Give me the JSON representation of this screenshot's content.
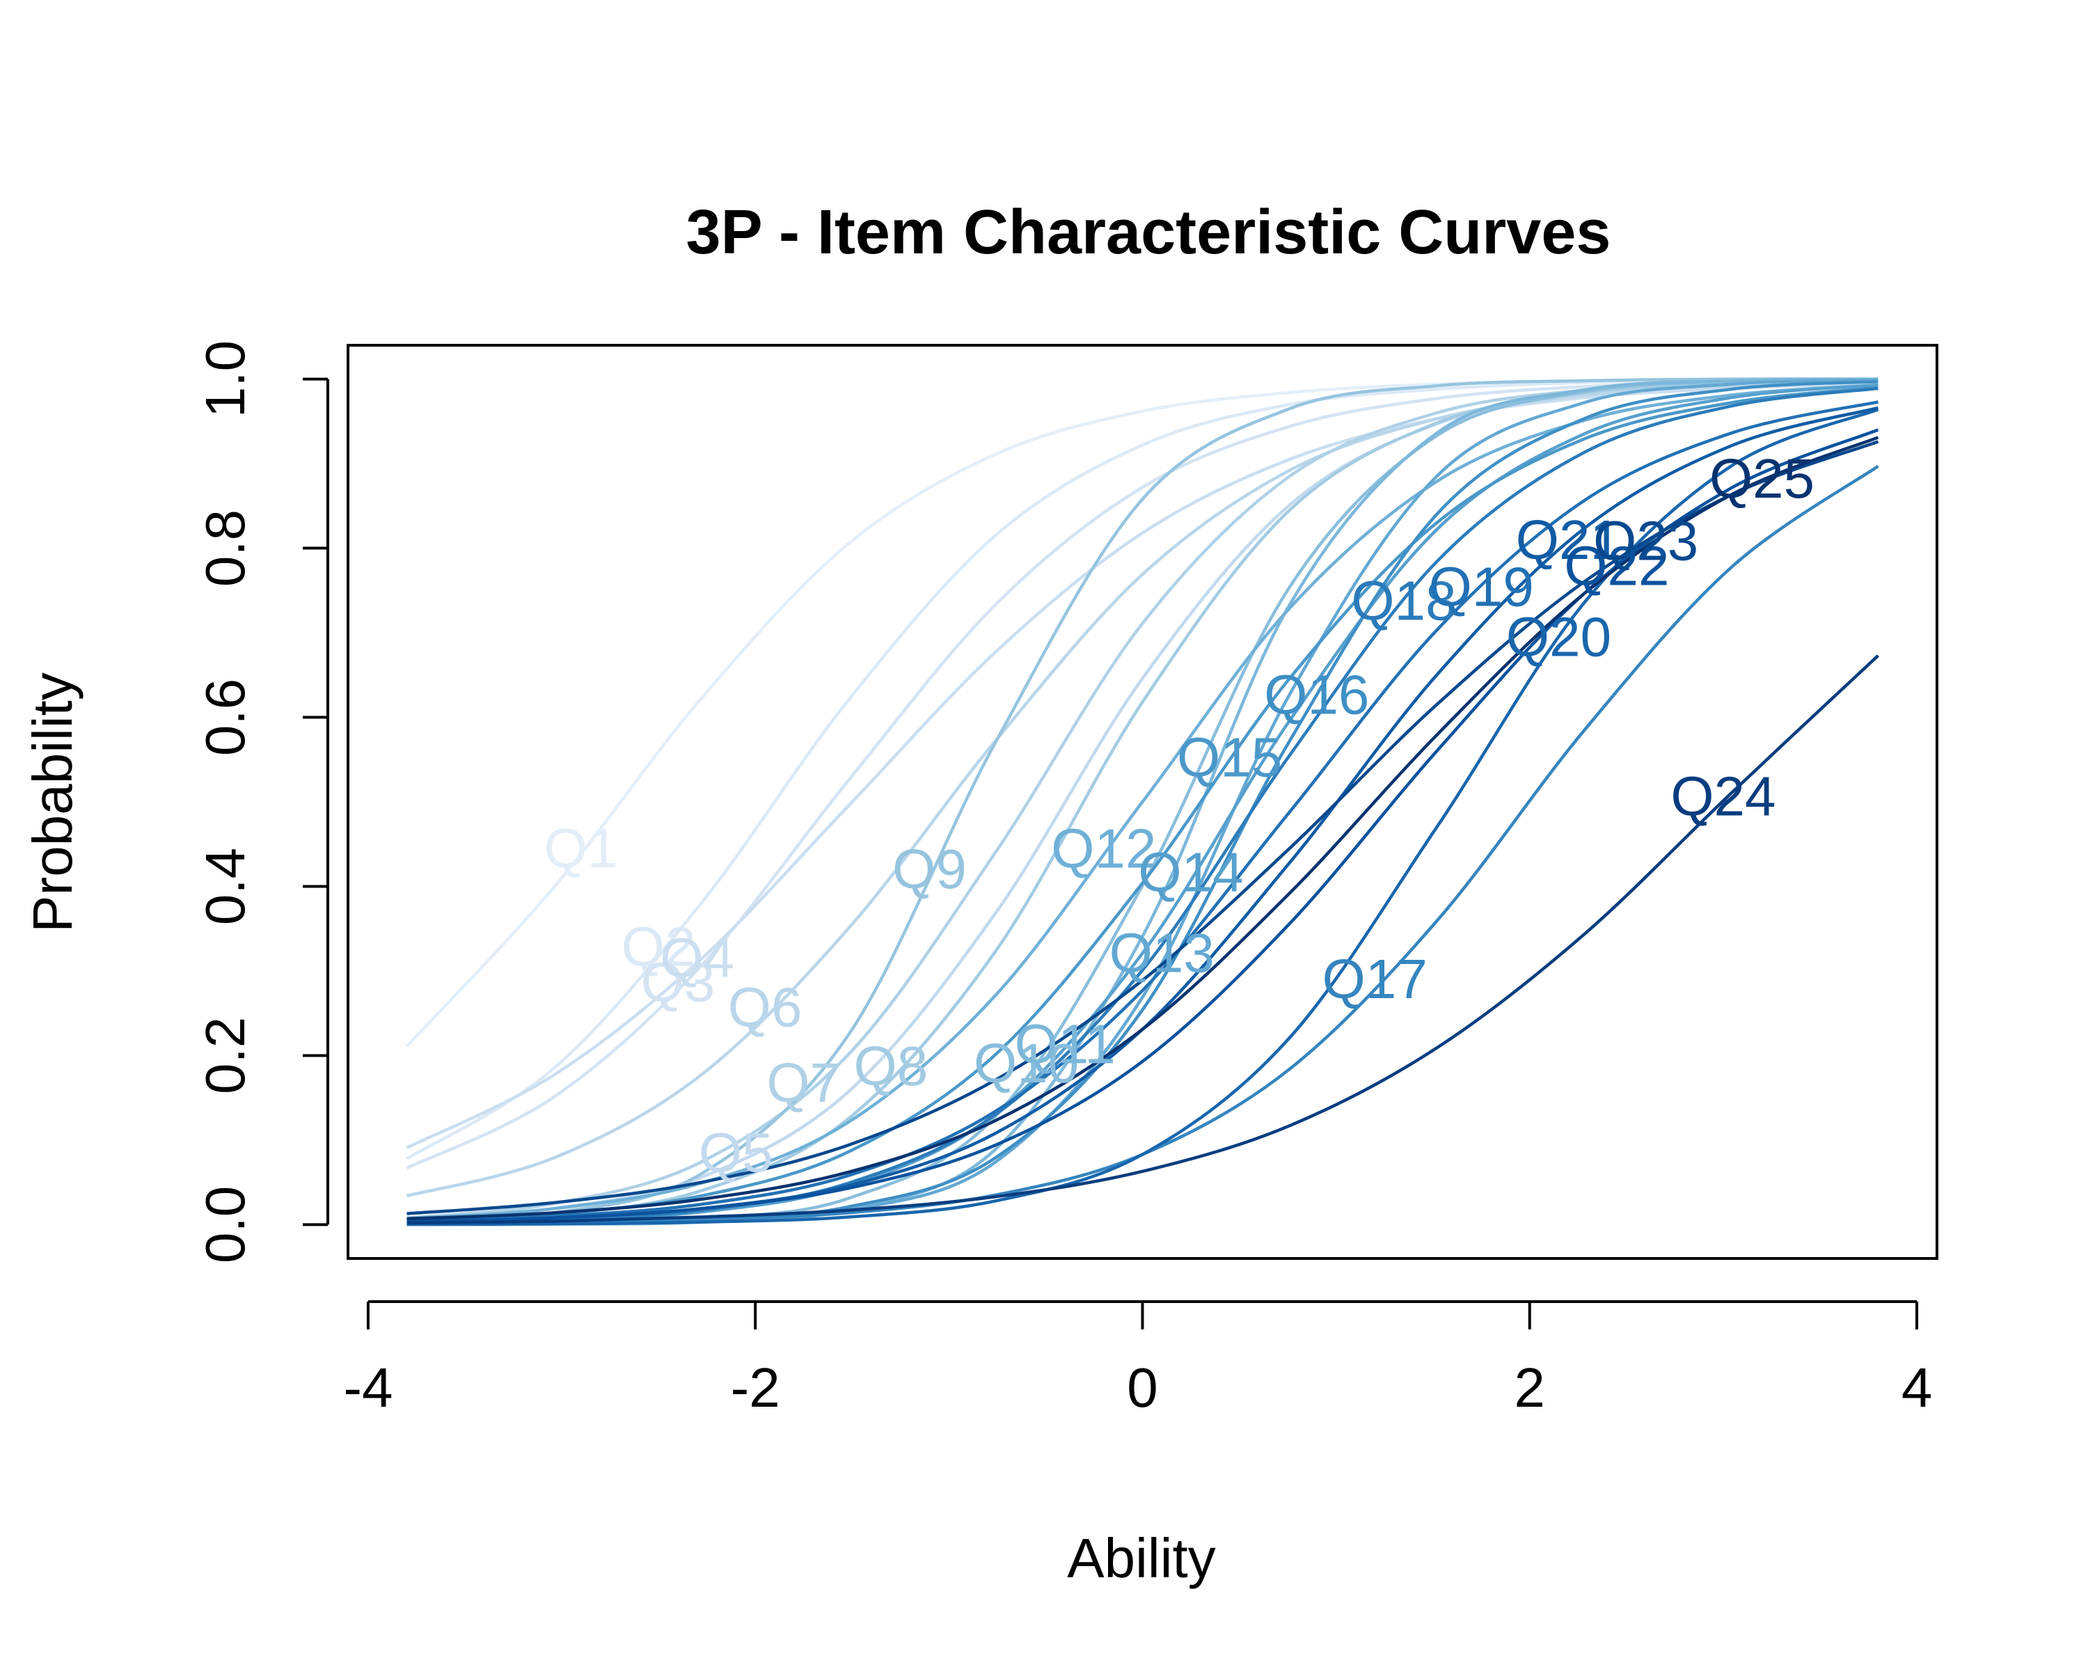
{
  "chart_data": {
    "type": "line",
    "title": "3P - Item Characteristic Curves",
    "x_label": "Ability",
    "y_label": "Probability",
    "xlim": [
      -4.104,
      4.104
    ],
    "ylim": [
      -0.04,
      1.04
    ],
    "xticks": [
      -4,
      -2,
      0,
      2,
      4
    ],
    "yticks": [
      {
        "value": 0,
        "label": "0.0"
      },
      0.2,
      0.4,
      0.6,
      0.8,
      {
        "value": 1,
        "label": "1.0"
      }
    ],
    "x": [
      -3.8,
      -3.04,
      -2.28,
      -1.52,
      -0.76,
      0,
      0.76,
      1.52,
      2.28,
      3.04,
      3.8
    ],
    "series": [
      {
        "name": "Q1",
        "color": "#e3eef9",
        "values": [
          0.211,
          0.399,
          0.622,
          0.805,
          0.911,
          0.962,
          0.984,
          0.994,
          0.997,
          0.999,
          1.0
        ]
      },
      {
        "name": "Q2",
        "color": "#dbe9f6",
        "values": [
          0.078,
          0.185,
          0.38,
          0.62,
          0.815,
          0.922,
          0.97,
          0.988,
          0.996,
          0.998,
          0.999
        ]
      },
      {
        "name": "Q3",
        "color": "#d3e3f3",
        "values": [
          0.067,
          0.151,
          0.306,
          0.525,
          0.733,
          0.872,
          0.944,
          0.977,
          0.991,
          0.996,
          0.998
        ]
      },
      {
        "name": "Q4",
        "color": "#cadef0",
        "values": [
          0.091,
          0.177,
          0.314,
          0.495,
          0.677,
          0.818,
          0.905,
          0.953,
          0.978,
          0.989,
          0.995
        ]
      },
      {
        "name": "Q5",
        "color": "#c2d9ee",
        "values": [
          0.006,
          0.019,
          0.056,
          0.157,
          0.368,
          0.646,
          0.851,
          0.947,
          0.982,
          0.994,
          0.998
        ]
      },
      {
        "name": "Q6",
        "color": "#b9d5ea",
        "values": [
          0.034,
          0.079,
          0.177,
          0.35,
          0.572,
          0.769,
          0.892,
          0.953,
          0.981,
          0.992,
          0.997
        ]
      },
      {
        "name": "Q7",
        "color": "#afd1e7",
        "values": [
          0.008,
          0.025,
          0.074,
          0.201,
          0.44,
          0.711,
          0.885,
          0.96,
          0.987,
          0.996,
          0.999
        ]
      },
      {
        "name": "Q8",
        "color": "#a3cbe3",
        "values": [
          0.004,
          0.012,
          0.04,
          0.125,
          0.323,
          0.618,
          0.845,
          0.948,
          0.984,
          0.995,
          0.999
        ]
      },
      {
        "name": "Q9",
        "color": "#96c4df",
        "values": [
          0.003,
          0.014,
          0.06,
          0.224,
          0.57,
          0.858,
          0.965,
          0.992,
          0.998,
          1.0,
          1.0
        ]
      },
      {
        "name": "Q10",
        "color": "#89bedc",
        "values": [
          0.0003,
          0.0015,
          0.007,
          0.031,
          0.128,
          0.401,
          0.754,
          0.933,
          0.985,
          0.997,
          0.999
        ]
      },
      {
        "name": "Q11",
        "color": "#7cb7da",
        "values": [
          0.0001,
          0.0006,
          0.003,
          0.018,
          0.089,
          0.341,
          0.733,
          0.936,
          0.987,
          0.998,
          1.0
        ]
      },
      {
        "name": "Q12",
        "color": "#6fb0d7",
        "values": [
          0.007,
          0.019,
          0.049,
          0.121,
          0.271,
          0.5,
          0.729,
          0.879,
          0.951,
          0.981,
          0.993
        ]
      },
      {
        "name": "Q13",
        "color": "#63a8d3",
        "values": [
          0.0002,
          0.0008,
          0.004,
          0.017,
          0.074,
          0.269,
          0.627,
          0.885,
          0.972,
          0.994,
          0.999
        ]
      },
      {
        "name": "Q14",
        "color": "#56a0ce",
        "values": [
          0.0016,
          0.005,
          0.015,
          0.046,
          0.131,
          0.321,
          0.596,
          0.822,
          0.935,
          0.978,
          0.993
        ]
      },
      {
        "name": "Q15",
        "color": "#4a98c9",
        "values": [
          0.005,
          0.013,
          0.034,
          0.086,
          0.201,
          0.404,
          0.646,
          0.83,
          0.929,
          0.972,
          0.99
        ]
      },
      {
        "name": "Q16",
        "color": "#3f8fc5",
        "values": [
          0.0004,
          0.0014,
          0.006,
          0.021,
          0.079,
          0.254,
          0.572,
          0.84,
          0.953,
          0.988,
          0.997
        ]
      },
      {
        "name": "Q17",
        "color": "#3585bf",
        "values": [
          0.001,
          0.002,
          0.006,
          0.014,
          0.035,
          0.083,
          0.184,
          0.359,
          0.584,
          0.777,
          0.897
        ]
      },
      {
        "name": "Q18",
        "color": "#2b7bba",
        "values": [
          0.002,
          0.006,
          0.017,
          0.049,
          0.13,
          0.301,
          0.555,
          0.784,
          0.913,
          0.968,
          0.989
        ]
      },
      {
        "name": "Q19",
        "color": "#2271b5",
        "values": [
          0.004,
          0.01,
          0.024,
          0.058,
          0.134,
          0.277,
          0.488,
          0.703,
          0.856,
          0.936,
          0.973
        ]
      },
      {
        "name": "Q20",
        "color": "#1966ad",
        "values": [
          0.0003,
          0.001,
          0.003,
          0.009,
          0.028,
          0.083,
          0.221,
          0.47,
          0.735,
          0.897,
          0.964
        ]
      },
      {
        "name": "Q21",
        "color": "#115ca5",
        "values": [
          0.003,
          0.008,
          0.019,
          0.046,
          0.108,
          0.231,
          0.428,
          0.65,
          0.823,
          0.921,
          0.966
        ]
      },
      {
        "name": "Q22",
        "color": "#0b529e",
        "values": [
          0.004,
          0.008,
          0.019,
          0.043,
          0.094,
          0.193,
          0.356,
          0.56,
          0.746,
          0.871,
          0.94
        ]
      },
      {
        "name": "Q23",
        "color": "#08488e",
        "values": [
          0.013,
          0.026,
          0.05,
          0.094,
          0.171,
          0.289,
          0.445,
          0.615,
          0.76,
          0.863,
          0.926
        ]
      },
      {
        "name": "Q24",
        "color": "#083d7f",
        "values": [
          0.002,
          0.004,
          0.009,
          0.017,
          0.033,
          0.063,
          0.117,
          0.209,
          0.343,
          0.51,
          0.673
        ]
      },
      {
        "name": "Q25",
        "color": "#083370",
        "values": [
          0.007,
          0.014,
          0.03,
          0.062,
          0.123,
          0.231,
          0.392,
          0.579,
          0.746,
          0.863,
          0.931
        ]
      }
    ]
  }
}
